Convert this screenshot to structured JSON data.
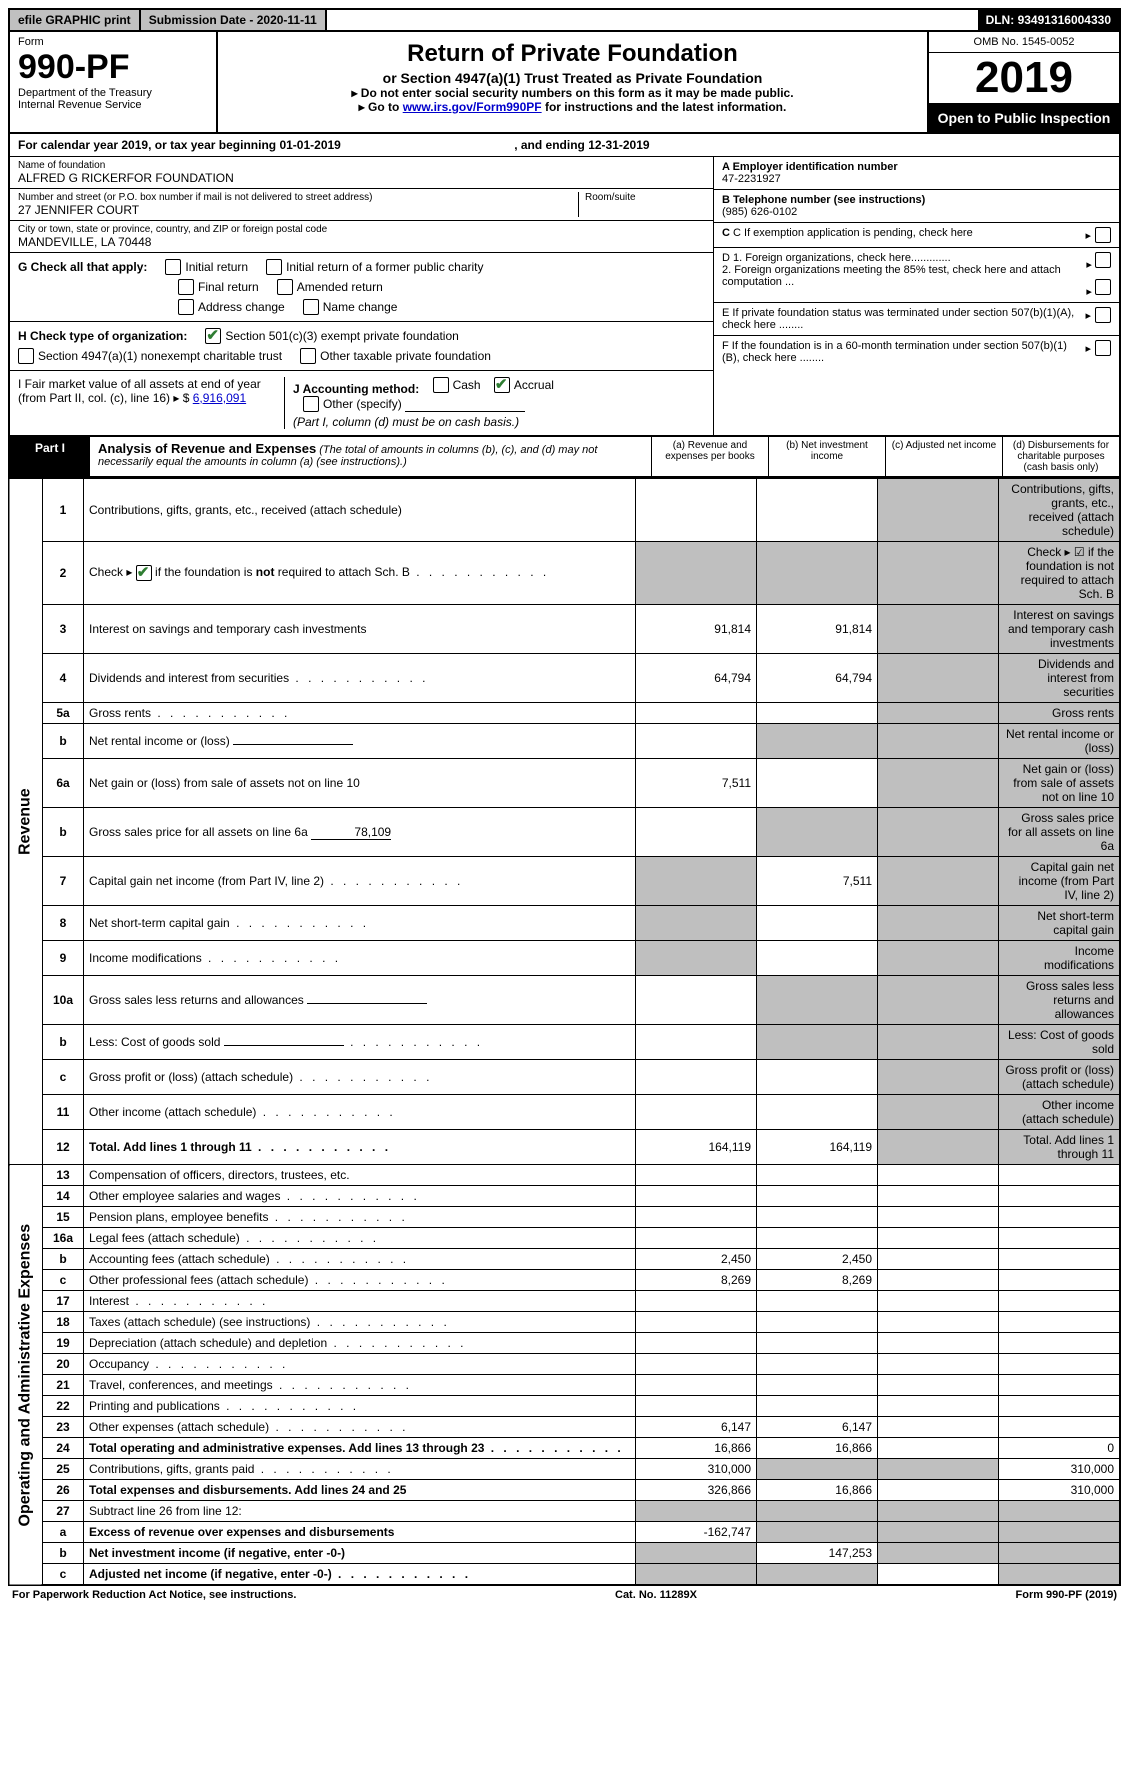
{
  "topbar": {
    "efile": "efile GRAPHIC print",
    "subdate_label": "Submission Date - ",
    "subdate": "2020-11-11",
    "dln_label": "DLN: ",
    "dln": "93491316004330"
  },
  "header": {
    "form_label": "Form",
    "form_num": "990-PF",
    "dept1": "Department of the Treasury",
    "dept2": "Internal Revenue Service",
    "title": "Return of Private Foundation",
    "subtitle": "or Section 4947(a)(1) Trust Treated as Private Foundation",
    "line1": "▸ Do not enter social security numbers on this form as it may be made public.",
    "line2_pre": "▸ Go to ",
    "line2_link": "www.irs.gov/Form990PF",
    "line2_post": " for instructions and the latest information.",
    "omb": "OMB No. 1545-0052",
    "year": "2019",
    "open": "Open to Public Inspection"
  },
  "calyear": {
    "text_pre": "For calendar year 2019, or tax year beginning ",
    "begin": "01-01-2019",
    "text_mid": " , and ending ",
    "end": "12-31-2019"
  },
  "info": {
    "name_label": "Name of foundation",
    "name": "ALFRED G RICKERFOR FOUNDATION",
    "addr_label": "Number and street (or P.O. box number if mail is not delivered to street address)",
    "addr": "27 JENNIFER COURT",
    "room_label": "Room/suite",
    "room": "",
    "city_label": "City or town, state or province, country, and ZIP or foreign postal code",
    "city": "MANDEVILLE, LA  70448",
    "a_label": "A Employer identification number",
    "a_val": "47-2231927",
    "b_label": "B Telephone number (see instructions)",
    "b_val": "(985) 626-0102",
    "c_label": "C If exemption application is pending, check here",
    "d1": "D 1. Foreign organizations, check here.............",
    "d2": "   2. Foreign organizations meeting the 85% test, check here and attach computation ...",
    "e": "E  If private foundation status was terminated under section 507(b)(1)(A), check here ........",
    "f": "F  If the foundation is in a 60-month termination under section 507(b)(1)(B), check here ........"
  },
  "g": {
    "label": "G Check all that apply:",
    "initial": "Initial return",
    "initial_former": "Initial return of a former public charity",
    "final": "Final return",
    "amended": "Amended return",
    "address": "Address change",
    "namechg": "Name change"
  },
  "h": {
    "label": "H Check type of organization:",
    "opt1": "Section 501(c)(3) exempt private foundation",
    "opt2": "Section 4947(a)(1) nonexempt charitable trust",
    "opt3": "Other taxable private foundation"
  },
  "i": {
    "label": "I Fair market value of all assets at end of year (from Part II, col. (c), line 16)",
    "val": "6,916,091"
  },
  "j": {
    "label": "J Accounting method:",
    "cash": "Cash",
    "accrual": "Accrual",
    "other": "Other (specify)",
    "note": "(Part I, column (d) must be on cash basis.)"
  },
  "part1": {
    "label": "Part I",
    "title": "Analysis of Revenue and Expenses",
    "desc": " (The total of amounts in columns (b), (c), and (d) may not necessarily equal the amounts in column (a) (see instructions).)",
    "col_a": "(a)  Revenue and expenses per books",
    "col_b": "(b)  Net investment income",
    "col_c": "(c)  Adjusted net income",
    "col_d": "(d)  Disbursements for charitable purposes (cash basis only)"
  },
  "side_labels": {
    "revenue": "Revenue",
    "expenses": "Operating and Administrative Expenses"
  },
  "rows": [
    {
      "n": "1",
      "d": "Contributions, gifts, grants, etc., received (attach schedule)"
    },
    {
      "n": "2",
      "d": "Check ▸ ☑ if the foundation is not required to attach Sch. B",
      "dots": true,
      "checked": true
    },
    {
      "n": "3",
      "d": "Interest on savings and temporary cash investments",
      "a": "91,814",
      "b": "91,814"
    },
    {
      "n": "4",
      "d": "Dividends and interest from securities",
      "a": "64,794",
      "b": "64,794",
      "dots": true
    },
    {
      "n": "5a",
      "d": "Gross rents",
      "dots": true
    },
    {
      "n": "b",
      "d": "Net rental income or (loss)",
      "inline": true
    },
    {
      "n": "6a",
      "d": "Net gain or (loss) from sale of assets not on line 10",
      "a": "7,511"
    },
    {
      "n": "b",
      "d": "Gross sales price for all assets on line 6a",
      "inline_val": "78,109"
    },
    {
      "n": "7",
      "d": "Capital gain net income (from Part IV, line 2)",
      "b": "7,511",
      "dots": true
    },
    {
      "n": "8",
      "d": "Net short-term capital gain",
      "dots": true
    },
    {
      "n": "9",
      "d": "Income modifications",
      "dots": true
    },
    {
      "n": "10a",
      "d": "Gross sales less returns and allowances",
      "inline": true
    },
    {
      "n": "b",
      "d": "Less: Cost of goods sold",
      "dots": true,
      "inline": true
    },
    {
      "n": "c",
      "d": "Gross profit or (loss) (attach schedule)",
      "dots": true
    },
    {
      "n": "11",
      "d": "Other income (attach schedule)",
      "dots": true
    },
    {
      "n": "12",
      "d": "Total. Add lines 1 through 11",
      "a": "164,119",
      "b": "164,119",
      "bold": true,
      "dots": true
    }
  ],
  "exp_rows": [
    {
      "n": "13",
      "d": "Compensation of officers, directors, trustees, etc."
    },
    {
      "n": "14",
      "d": "Other employee salaries and wages",
      "dots": true
    },
    {
      "n": "15",
      "d": "Pension plans, employee benefits",
      "dots": true
    },
    {
      "n": "16a",
      "d": "Legal fees (attach schedule)",
      "dots": true
    },
    {
      "n": "b",
      "d": "Accounting fees (attach schedule)",
      "a": "2,450",
      "b": "2,450",
      "dots": true
    },
    {
      "n": "c",
      "d": "Other professional fees (attach schedule)",
      "a": "8,269",
      "b": "8,269",
      "dots": true
    },
    {
      "n": "17",
      "d": "Interest",
      "dots": true
    },
    {
      "n": "18",
      "d": "Taxes (attach schedule) (see instructions)",
      "dots": true
    },
    {
      "n": "19",
      "d": "Depreciation (attach schedule) and depletion",
      "dots": true
    },
    {
      "n": "20",
      "d": "Occupancy",
      "dots": true
    },
    {
      "n": "21",
      "d": "Travel, conferences, and meetings",
      "dots": true
    },
    {
      "n": "22",
      "d": "Printing and publications",
      "dots": true
    },
    {
      "n": "23",
      "d": "Other expenses (attach schedule)",
      "a": "6,147",
      "b": "6,147",
      "dots": true
    },
    {
      "n": "24",
      "d": "Total operating and administrative expenses. Add lines 13 through 23",
      "a": "16,866",
      "b": "16,866",
      "dval": "0",
      "bold": true,
      "dots": true
    },
    {
      "n": "25",
      "d": "Contributions, gifts, grants paid",
      "a": "310,000",
      "dval": "310,000",
      "dots": true
    },
    {
      "n": "26",
      "d": "Total expenses and disbursements. Add lines 24 and 25",
      "a": "326,866",
      "b": "16,866",
      "dval": "310,000",
      "bold": true
    },
    {
      "n": "27",
      "d": "Subtract line 26 from line 12:"
    },
    {
      "n": "a",
      "d": "Excess of revenue over expenses and disbursements",
      "a": "-162,747",
      "bold": true
    },
    {
      "n": "b",
      "d": "Net investment income (if negative, enter -0-)",
      "b": "147,253",
      "bold": true
    },
    {
      "n": "c",
      "d": "Adjusted net income (if negative, enter -0-)",
      "bold": true,
      "dots": true
    }
  ],
  "shading": {
    "revenue_c_all": true,
    "revenue_d_all": true,
    "line6_bcd": true,
    "line7_a": true,
    "line8_a": true,
    "line9_a": true,
    "exp25_bc": true,
    "exp27_all": true,
    "exp_a_bcd": true,
    "exp_b_acd": true,
    "exp_c_abd": true
  },
  "footer": {
    "left": "For Paperwork Reduction Act Notice, see instructions.",
    "mid": "Cat. No. 11289X",
    "right": "Form 990-PF (2019)"
  }
}
